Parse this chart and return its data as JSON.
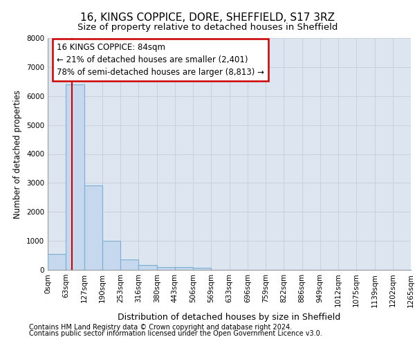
{
  "title1": "16, KINGS COPPICE, DORE, SHEFFIELD, S17 3RZ",
  "title2": "Size of property relative to detached houses in Sheffield",
  "xlabel": "Distribution of detached houses by size in Sheffield",
  "ylabel": "Number of detached properties",
  "bin_edges": [
    0,
    63,
    127,
    190,
    253,
    316,
    380,
    443,
    506,
    569,
    633,
    696,
    759,
    822,
    886,
    949,
    1012,
    1075,
    1139,
    1202,
    1265
  ],
  "bar_heights": [
    560,
    6400,
    2920,
    1000,
    360,
    175,
    100,
    85,
    70,
    0,
    0,
    0,
    0,
    0,
    0,
    0,
    0,
    0,
    0,
    0
  ],
  "bar_color": "#c5d8ee",
  "bar_edge_color": "#7bafd4",
  "property_size": 84,
  "red_line_color": "#cc0000",
  "annotation_line1": "16 KINGS COPPICE: 84sqm",
  "annotation_line2": "← 21% of detached houses are smaller (2,401)",
  "annotation_line3": "78% of semi-detached houses are larger (8,813) →",
  "annotation_box_color": "#cc0000",
  "ylim": [
    0,
    8000
  ],
  "yticks": [
    0,
    1000,
    2000,
    3000,
    4000,
    5000,
    6000,
    7000,
    8000
  ],
  "grid_color": "#c8d0dc",
  "background_color": "#dde5f0",
  "footer1": "Contains HM Land Registry data © Crown copyright and database right 2024.",
  "footer2": "Contains public sector information licensed under the Open Government Licence v3.0.",
  "title1_fontsize": 11,
  "title2_fontsize": 9.5,
  "xlabel_fontsize": 9,
  "ylabel_fontsize": 8.5,
  "tick_fontsize": 7.5,
  "annotation_fontsize": 8.5,
  "footer_fontsize": 7
}
